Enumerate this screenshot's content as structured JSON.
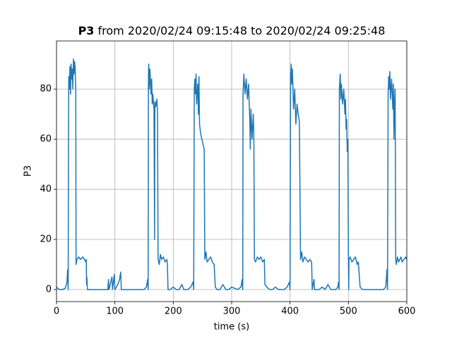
{
  "chart_data": {
    "type": "line",
    "title": {
      "name": "P3",
      "text": "from 2020/02/24 09:15:48 to 2020/02/24 09:25:48"
    },
    "xlabel": "time (s)",
    "ylabel": "P3",
    "color": "#1f77b4",
    "grid": true,
    "xlim": [
      0,
      600
    ],
    "xticks": [
      0,
      100,
      200,
      300,
      400,
      500,
      600
    ],
    "ylim": [
      -4.8,
      99.2
    ],
    "yticks": [
      0,
      20,
      40,
      60,
      80
    ],
    "x": [
      0,
      2,
      5,
      10,
      15,
      18,
      19,
      20,
      20.5,
      21,
      22,
      23,
      24,
      25,
      26,
      27,
      28,
      29,
      30,
      31,
      32,
      33,
      33.5,
      35,
      38,
      41,
      45,
      48,
      50,
      51,
      51.5,
      52,
      53,
      56,
      60,
      70,
      80,
      88,
      89,
      90,
      95,
      96,
      99,
      100,
      105,
      108,
      110,
      111,
      115,
      125,
      135,
      145,
      150,
      154,
      156,
      157,
      157.5,
      158,
      159,
      160,
      162,
      163,
      164,
      165,
      167,
      168,
      168.5,
      170,
      172,
      173,
      174,
      176,
      178,
      180,
      183,
      186,
      189,
      190,
      191,
      195,
      200,
      205,
      210,
      215,
      218,
      225,
      230,
      234,
      235,
      236,
      237,
      238,
      239,
      240,
      242,
      243,
      244,
      245,
      247,
      249,
      251,
      253,
      254,
      256,
      258,
      261,
      264,
      267,
      270,
      272,
      275,
      280,
      285,
      290,
      295,
      300,
      310,
      316,
      318,
      319,
      319.5,
      321,
      323,
      325,
      327,
      329,
      331,
      332,
      333,
      335,
      337,
      338,
      339,
      341,
      344,
      347,
      350,
      353,
      356,
      357,
      360,
      365,
      370,
      375,
      380,
      390,
      395,
      399,
      400,
      401,
      402,
      403,
      404,
      406,
      408,
      410,
      412,
      414,
      416,
      418,
      420,
      422,
      425,
      428,
      431,
      434,
      437,
      438,
      441,
      442,
      450,
      455,
      460,
      465,
      470,
      478,
      482,
      483,
      484,
      484.5,
      486,
      487,
      488,
      490,
      492,
      494,
      495,
      496,
      497,
      498,
      499,
      500,
      500.5,
      501,
      503,
      506,
      509,
      512,
      515,
      517,
      520,
      524,
      530,
      540,
      550,
      560,
      564,
      566,
      567,
      568,
      569,
      570,
      571,
      572,
      574,
      576,
      577,
      578,
      579,
      580,
      581,
      582,
      584,
      586,
      588,
      590,
      592,
      595,
      598,
      600
    ],
    "values": [
      1,
      0.5,
      0,
      0,
      0.5,
      3,
      8,
      0,
      55,
      85,
      80,
      89,
      78,
      90,
      84,
      88,
      80,
      92,
      86,
      91,
      88,
      80,
      10,
      12,
      13,
      12,
      13,
      12,
      11,
      12,
      2,
      5,
      0,
      0,
      0,
      0,
      0,
      0,
      4,
      0,
      5,
      0,
      6,
      0,
      2,
      4,
      7,
      0,
      0,
      0,
      0,
      0,
      0,
      1,
      4,
      0,
      85,
      90,
      80,
      88,
      78,
      84,
      74,
      78,
      72,
      20,
      75,
      73,
      76,
      70,
      12,
      10,
      14,
      12,
      13,
      11,
      12,
      10,
      0,
      0,
      1,
      0,
      0,
      2,
      0,
      0,
      1,
      3,
      0,
      80,
      84,
      78,
      86,
      74,
      82,
      70,
      85,
      66,
      62,
      60,
      58,
      56,
      12,
      15,
      11,
      12,
      13,
      11,
      10,
      1,
      0,
      0,
      2,
      0,
      0,
      1,
      0,
      1,
      4,
      0,
      78,
      86,
      78,
      84,
      76,
      82,
      68,
      56,
      72,
      60,
      70,
      62,
      12,
      11,
      13,
      12,
      13,
      11,
      12,
      2,
      1,
      0,
      0,
      1,
      0,
      0,
      1,
      3,
      0,
      85,
      90,
      82,
      88,
      72,
      80,
      66,
      74,
      70,
      67,
      12,
      15,
      11,
      13,
      12,
      11,
      12,
      11,
      0,
      4,
      0,
      0,
      1,
      0,
      2,
      0,
      0,
      1,
      3,
      0,
      80,
      86,
      76,
      82,
      74,
      80,
      70,
      76,
      64,
      68,
      55,
      60,
      12,
      0,
      12,
      13,
      11,
      12,
      13,
      10,
      11,
      1,
      0,
      0,
      0,
      0,
      0,
      1,
      8,
      0,
      78,
      85,
      80,
      87,
      76,
      84,
      72,
      82,
      60,
      75,
      80,
      12,
      10,
      13,
      11,
      12,
      13,
      11,
      12,
      13,
      12
    ]
  }
}
